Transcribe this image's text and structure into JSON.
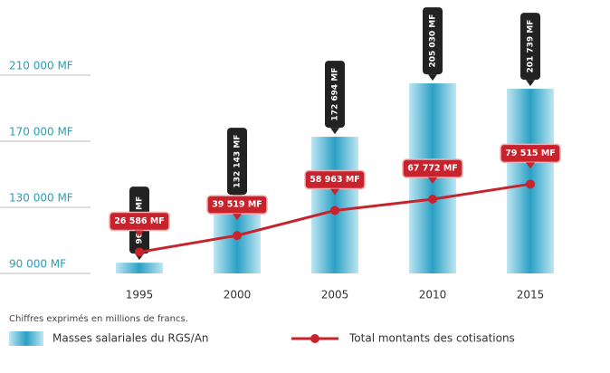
{
  "chart_data": {
    "type": "bar",
    "categories": [
      "1995",
      "2000",
      "2005",
      "2010",
      "2015"
    ],
    "series": [
      {
        "name": "Masses salariales du RGS/An",
        "type": "bar",
        "color": "#2aa0c4",
        "values": [
          96481,
          132143,
          172694,
          205030,
          201739
        ],
        "value_labels": [
          "96 481 MF",
          "132 143 MF",
          "172 694 MF",
          "205 030 MF",
          "201 739 MF"
        ]
      },
      {
        "name": "Total montants des cotisations",
        "type": "line",
        "axis": "y2",
        "color": "#c8232c",
        "values": [
          26586,
          39519,
          58963,
          67772,
          79515
        ],
        "value_labels": [
          "26 586 MF",
          "39 519 MF",
          "58 963 MF",
          "67 772 MF",
          "79 515 MF"
        ]
      }
    ],
    "ylim": [
      90000,
      230000
    ],
    "yticks": [
      {
        "value": 90000,
        "label": "90 000 MF"
      },
      {
        "value": 130000,
        "label": "130 000 MF"
      },
      {
        "value": 170000,
        "label": "170 000 MF"
      },
      {
        "value": 210000,
        "label": "210 000 MF"
      }
    ],
    "y2lim": [
      10000,
      190000
    ],
    "note": "Chiffres exprimés en millions de francs.",
    "legend": "bottom"
  }
}
